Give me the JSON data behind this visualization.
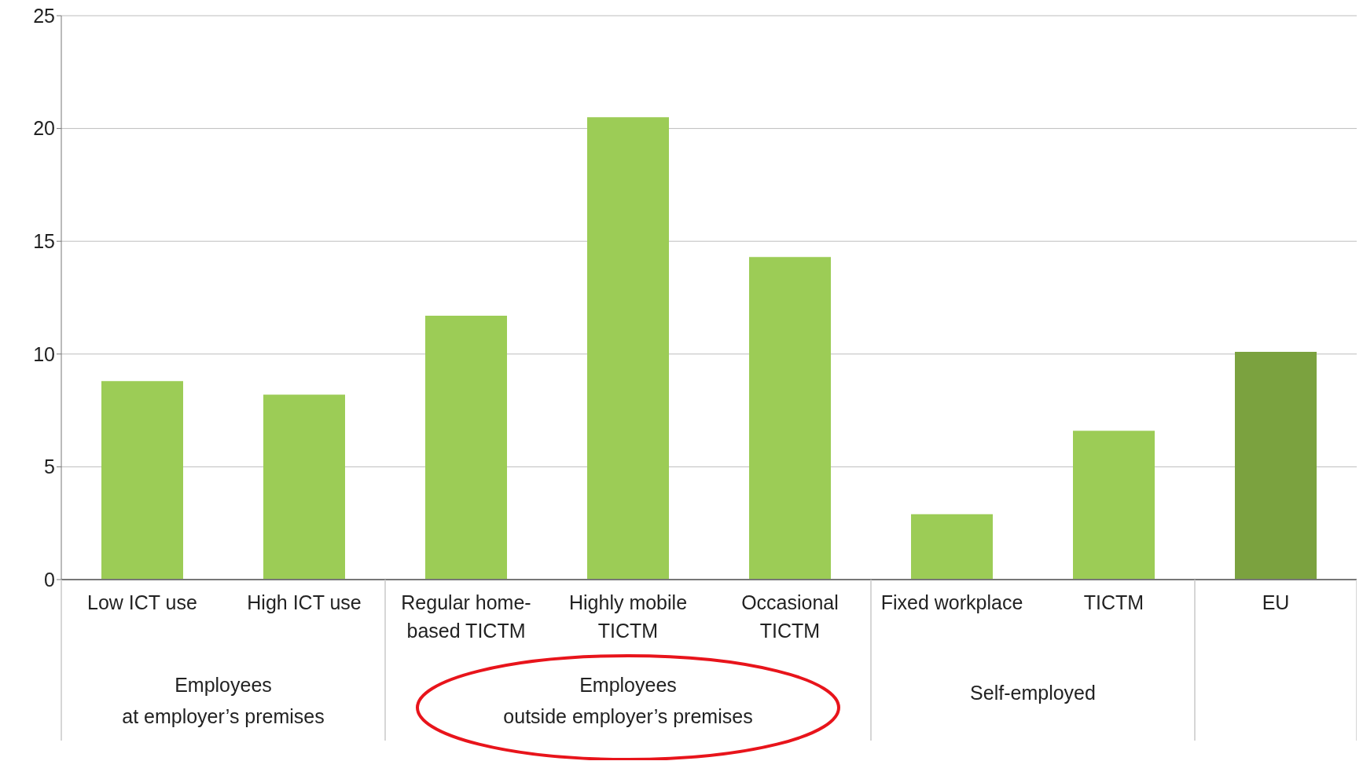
{
  "chart_data": {
    "type": "bar",
    "categories": [
      "Low ICT use",
      "High ICT use",
      "Regular home-based TICTM",
      "Highly mobile TICTM",
      "Occasional TICTM",
      "Fixed workplace",
      "TICTM",
      "EU"
    ],
    "values": [
      8.8,
      8.2,
      11.7,
      20.5,
      14.3,
      2.9,
      6.6,
      10.1
    ],
    "colors": [
      "#9ccc56",
      "#9ccc56",
      "#9ccc56",
      "#9ccc56",
      "#9ccc56",
      "#9ccc56",
      "#9ccc56",
      "#7ba23f"
    ],
    "ylim": [
      0,
      25
    ],
    "yticks": [
      0,
      5,
      10,
      15,
      20,
      25
    ],
    "grid": "y",
    "annotations": [
      "Employees\nat employer’s premises",
      "Employees\noutside employer’s premises",
      "Self-employed"
    ]
  }
}
